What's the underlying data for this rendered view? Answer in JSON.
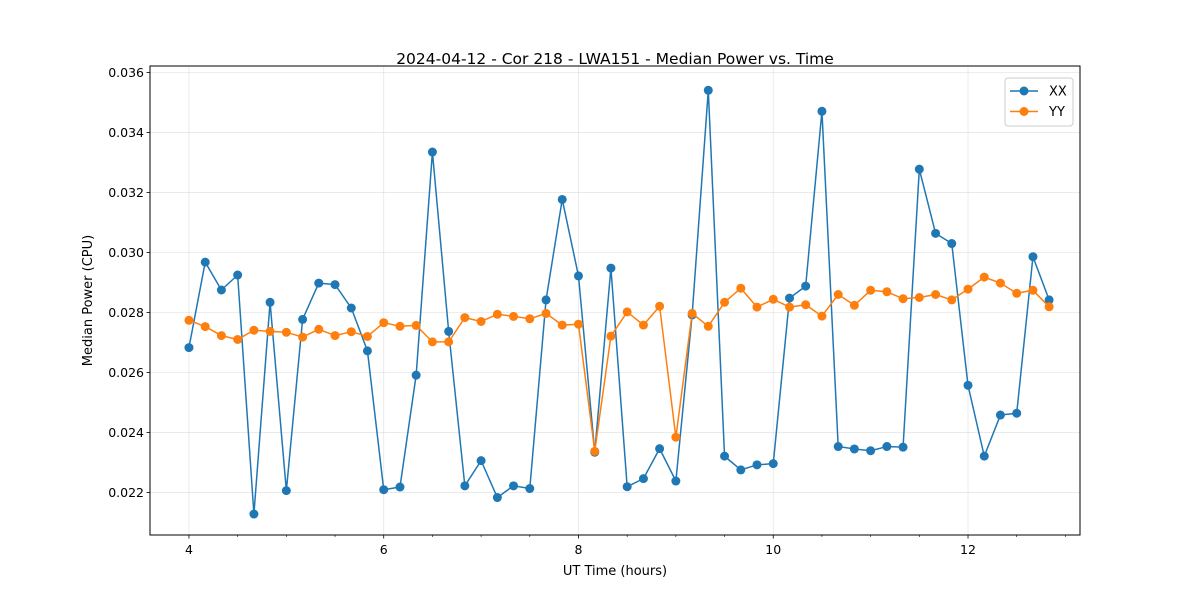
{
  "chart_data": {
    "type": "line",
    "title": "2024-04-12 - Cor 218 - LWA151 - Median Power vs. Time",
    "xlabel": "UT Time (hours)",
    "ylabel": "Median Power (CPU)",
    "xlim": [
      3.6,
      13.15
    ],
    "ylim": [
      0.02058,
      0.03622
    ],
    "xticks": [
      4,
      6,
      8,
      10,
      12
    ],
    "xtick_labels": [
      "4",
      "6",
      "8",
      "10",
      "12"
    ],
    "yticks": [
      0.022,
      0.024,
      0.026,
      0.028,
      0.03,
      0.032,
      0.034,
      0.036
    ],
    "ytick_labels": [
      "0.022",
      "0.024",
      "0.026",
      "0.028",
      "0.030",
      "0.032",
      "0.034",
      "0.036"
    ],
    "grid": true,
    "legend_position": "top-right",
    "x": [
      4.0,
      4.167,
      4.333,
      4.5,
      4.667,
      4.833,
      5.0,
      5.167,
      5.333,
      5.5,
      5.667,
      5.833,
      6.0,
      6.167,
      6.333,
      6.5,
      6.667,
      6.833,
      7.0,
      7.167,
      7.333,
      7.5,
      7.667,
      7.833,
      8.0,
      8.167,
      8.333,
      8.5,
      8.667,
      8.833,
      9.0,
      9.167,
      9.333,
      9.5,
      9.667,
      9.833,
      10.0,
      10.167,
      10.333,
      10.5,
      10.667,
      10.833,
      11.0,
      11.167,
      11.333,
      11.5,
      11.667,
      11.833,
      12.0,
      12.167,
      12.333,
      12.5,
      12.667,
      12.833
    ],
    "series": [
      {
        "name": "XX",
        "color": "#1f77b4",
        "values": [
          0.02683,
          0.02968,
          0.02875,
          0.02925,
          0.02128,
          0.02834,
          0.02206,
          0.02777,
          0.02898,
          0.02893,
          0.02815,
          0.02672,
          0.02209,
          0.02218,
          0.02591,
          0.03335,
          0.02737,
          0.02222,
          0.02306,
          0.02183,
          0.02222,
          0.02213,
          0.02842,
          0.03177,
          0.02922,
          0.02334,
          0.02948,
          0.02219,
          0.02246,
          0.02346,
          0.02238,
          0.02792,
          0.03541,
          0.02321,
          0.02275,
          0.02292,
          0.02296,
          0.02848,
          0.02888,
          0.03471,
          0.02353,
          0.02345,
          0.02339,
          0.02353,
          0.02351,
          0.03278,
          0.03064,
          0.0303,
          0.02557,
          0.02321,
          0.02458,
          0.02464,
          0.02986,
          0.02842
        ]
      },
      {
        "name": "YY",
        "color": "#ff7f0e",
        "values": [
          0.02774,
          0.02753,
          0.02723,
          0.0271,
          0.02741,
          0.02737,
          0.02734,
          0.02718,
          0.02744,
          0.02723,
          0.02736,
          0.0272,
          0.02766,
          0.02754,
          0.02757,
          0.02702,
          0.02702,
          0.02783,
          0.0277,
          0.02794,
          0.02787,
          0.02779,
          0.02797,
          0.02758,
          0.02761,
          0.02337,
          0.02721,
          0.02802,
          0.02758,
          0.02821,
          0.02384,
          0.02797,
          0.02754,
          0.02834,
          0.02881,
          0.02818,
          0.02844,
          0.02818,
          0.02826,
          0.02788,
          0.0286,
          0.02824,
          0.02874,
          0.02869,
          0.02846,
          0.0285,
          0.0286,
          0.02842,
          0.02878,
          0.02918,
          0.02898,
          0.02864,
          0.02874,
          0.02819
        ]
      }
    ]
  }
}
